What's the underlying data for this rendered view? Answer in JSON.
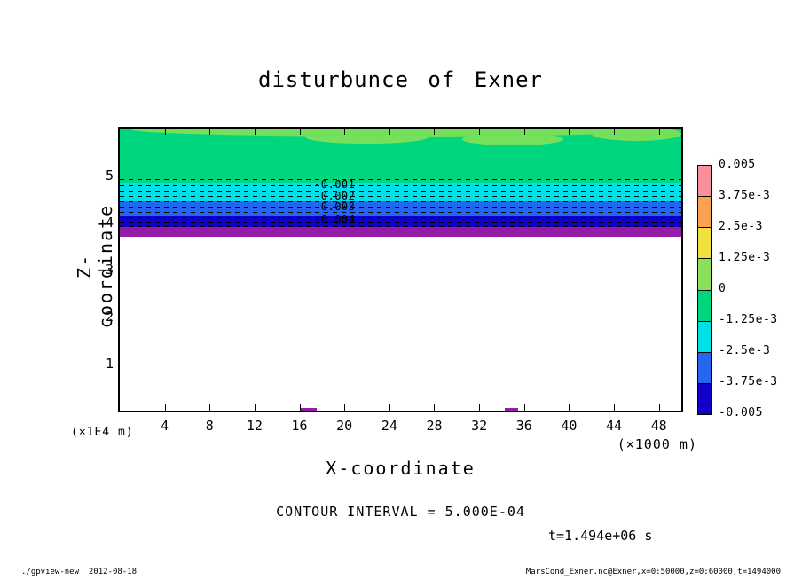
{
  "chart_data": {
    "type": "heatmap",
    "title": "disturbunce of Exner",
    "xlabel": "X-coordinate",
    "ylabel": "Z-coordinate",
    "x_unit_label": "(×1000 m)",
    "y_unit_label": "(×1E4 m)",
    "xlim": [
      0,
      50
    ],
    "ylim": [
      0,
      6
    ],
    "x_ticks": [
      4,
      8,
      12,
      16,
      20,
      24,
      28,
      32,
      36,
      40,
      44,
      48
    ],
    "y_ticks": [
      1,
      2,
      3,
      4,
      5
    ],
    "grid": false,
    "legend_position": "right-colorbar",
    "contour_interval_label": "CONTOUR INTERVAL = 5.000E-04",
    "time_label": "t=1.494e+06 s",
    "colorbar": {
      "labels": [
        "0.005",
        "3.75e-3",
        "2.5e-3",
        "1.25e-3",
        "0",
        "-1.25e-3",
        "-2.5e-3",
        "-3.75e-3",
        "-0.005"
      ],
      "colors": [
        "#F9909B",
        "#FBA14F",
        "#EFE23E",
        "#8BE05A",
        "#00D67D",
        "#00E0E8",
        "#2566F0",
        "#1000C8"
      ]
    },
    "bands": [
      {
        "z_from": 6.0,
        "z_to": 4.85,
        "value_range": "-1.25e-3 to 0",
        "color": "#00D67D"
      },
      {
        "z_from": 4.85,
        "z_to": 4.45,
        "value_range": "-2.5e-3 to -1.25e-3",
        "color": "#00E0E8"
      },
      {
        "z_from": 4.45,
        "z_to": 4.15,
        "value_range": "-3.75e-3 to -2.5e-3",
        "color": "#2566F0"
      },
      {
        "z_from": 4.15,
        "z_to": 3.91,
        "value_range": "-5e-3 to -3.75e-3",
        "color": "#1000C8"
      },
      {
        "z_from": 3.91,
        "z_to": 3.7,
        "value_range": "below -5e-3",
        "color": "#951CA8"
      },
      {
        "z_from": 3.7,
        "z_to": 0.0,
        "value_range": "near 0",
        "color": "#FFFFFF"
      }
    ],
    "top_patches": [
      {
        "x": 25,
        "z": 5.98,
        "w": 48,
        "h": 0.3,
        "color": "#74E05C"
      },
      {
        "x": 22,
        "z": 5.82,
        "w": 11,
        "h": 0.3,
        "color": "#74E05C"
      },
      {
        "x": 35,
        "z": 5.78,
        "w": 9,
        "h": 0.26,
        "color": "#74E05C"
      },
      {
        "x": 46,
        "z": 5.88,
        "w": 8,
        "h": 0.3,
        "color": "#74E05C"
      }
    ],
    "contour_lines_z": [
      4.92,
      4.8,
      4.68,
      4.56,
      4.45,
      4.34,
      4.23,
      4.12,
      4.02,
      3.92
    ],
    "contour_labels": [
      {
        "text": "-0.001",
        "x": 17.3,
        "z": 4.81
      },
      {
        "text": "-0.002",
        "x": 17.3,
        "z": 4.56
      },
      {
        "text": "-0.003",
        "x": 17.3,
        "z": 4.34
      },
      {
        "text": "-0.004",
        "x": 17.3,
        "z": 4.07
      }
    ],
    "bottom_marks": [
      {
        "x": 16.8,
        "w": 1.4,
        "color": "#951CA8"
      },
      {
        "x": 34.9,
        "w": 1.2,
        "color": "#951CA8"
      }
    ]
  },
  "footer": {
    "left": "./gpview-new  2012-08-18",
    "right": "MarsCond_Exner.nc@Exner,x=0:50000,z=0:60000,t=1494000"
  }
}
